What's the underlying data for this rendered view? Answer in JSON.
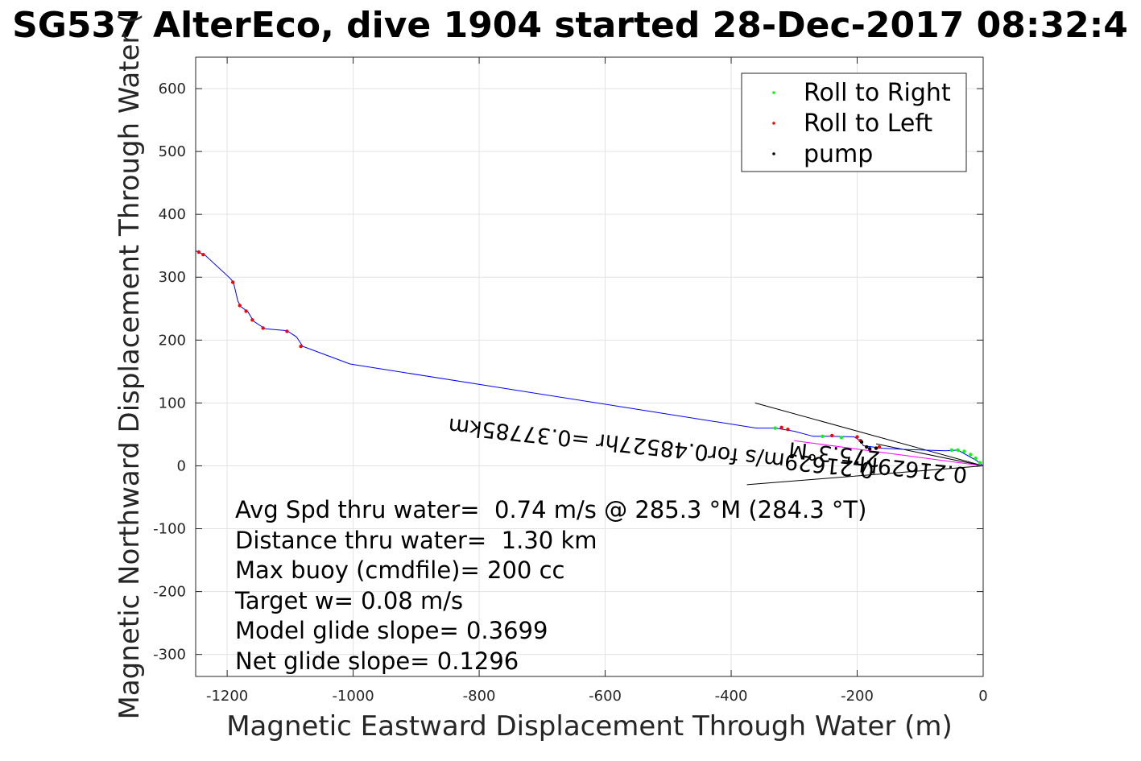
{
  "chart_data": {
    "type": "line",
    "title": "SG537 AlterEco, dive 1904 started 28-Dec-2017 08:32:4",
    "xlabel": "Magnetic Eastward Displacement Through Water (m)",
    "ylabel": "Magnetic Northward Displacement Through Water (",
    "xlim": [
      -1250,
      0
    ],
    "ylim": [
      -335,
      650
    ],
    "xticks": [
      -1200,
      -1000,
      -800,
      -600,
      -400,
      -200,
      0
    ],
    "yticks": [
      600,
      500,
      400,
      300,
      200,
      100,
      0,
      -100,
      -200,
      -300
    ],
    "grid": true,
    "legend_position": "top-right",
    "legend": [
      "Roll to Right",
      "Roll to Left",
      "pump"
    ],
    "series": [
      {
        "name": "track",
        "color": "#0000ff",
        "points": [
          [
            0,
            0
          ],
          [
            -10,
            8
          ],
          [
            -40,
            25
          ],
          [
            -60,
            24
          ],
          [
            -120,
            26
          ],
          [
            -160,
            28
          ],
          [
            -190,
            32
          ],
          [
            -195,
            40
          ],
          [
            -205,
            46
          ],
          [
            -240,
            47
          ],
          [
            -270,
            47
          ],
          [
            -300,
            55
          ],
          [
            -330,
            60
          ],
          [
            -360,
            60
          ],
          [
            -1005,
            162
          ],
          [
            -1080,
            190
          ],
          [
            -1090,
            205
          ],
          [
            -1105,
            215
          ],
          [
            -1140,
            218
          ],
          [
            -1158,
            230
          ],
          [
            -1167,
            245
          ],
          [
            -1178,
            253
          ],
          [
            -1183,
            262
          ],
          [
            -1190,
            292
          ],
          [
            -1195,
            298
          ],
          [
            -1235,
            335
          ],
          [
            -1250,
            342
          ]
        ]
      }
    ],
    "roll_right_points": [
      [
        -5,
        5
      ],
      [
        -12,
        12
      ],
      [
        -20,
        18
      ],
      [
        -30,
        23
      ],
      [
        -40,
        25
      ],
      [
        -50,
        25
      ],
      [
        -255,
        47
      ],
      [
        -225,
        45
      ],
      [
        -330,
        60
      ]
    ],
    "roll_left_points": [
      [
        -1245,
        340
      ],
      [
        -1238,
        336
      ],
      [
        -1191,
        292
      ],
      [
        -1180,
        255
      ],
      [
        -1170,
        246
      ],
      [
        -1160,
        232
      ],
      [
        -1143,
        219
      ],
      [
        -1105,
        214
      ],
      [
        -1083,
        190
      ],
      [
        -320,
        61
      ],
      [
        -310,
        58
      ],
      [
        -240,
        48
      ],
      [
        -200,
        46
      ],
      [
        -195,
        40
      ],
      [
        -165,
        30
      ]
    ],
    "pump_points": [
      [
        -193,
        38
      ],
      [
        -185,
        30
      ],
      [
        -170,
        28
      ],
      [
        -180,
        27
      ]
    ],
    "guide_lines": [
      {
        "from": [
          0,
          0
        ],
        "to": [
          -362,
          100
        ],
        "color": "#000000"
      },
      {
        "from": [
          0,
          0
        ],
        "to": [
          -375,
          -30
        ],
        "color": "#000000"
      },
      {
        "from": [
          0,
          0
        ],
        "to": [
          -170,
          35
        ],
        "color": "#000000"
      },
      {
        "from": [
          0,
          0
        ],
        "to": [
          -300,
          40
        ],
        "color": "#ff00ff"
      }
    ],
    "stats": [
      "Avg Spd thru water=  0.74 m/s @ 285.3 °M (284.3 °T)",
      "Distance thru water=  1.30 km",
      "Max buoy (cmdfile)= 200 cc",
      "Target w= 0.08 m/s",
      "Model glide slope= 0.3699",
      "Net glide slope= 0.1296"
    ],
    "annotations": [
      {
        "text": "0.21629m/s for0.48527hr =0.37785km",
        "x": -510,
        "y": 40,
        "rotation": 186
      },
      {
        "text": "275.3°M",
        "x": -235,
        "y": 30,
        "rotation": 186
      },
      {
        "text": "0.21629M",
        "x": -110,
        "y": 6,
        "rotation": 186
      }
    ],
    "colors": {
      "roll_right": "#00ff00",
      "roll_left": "#ff0000",
      "pump": "#000000",
      "track": "#0000ff",
      "slope_line": "#ff00ff"
    }
  }
}
